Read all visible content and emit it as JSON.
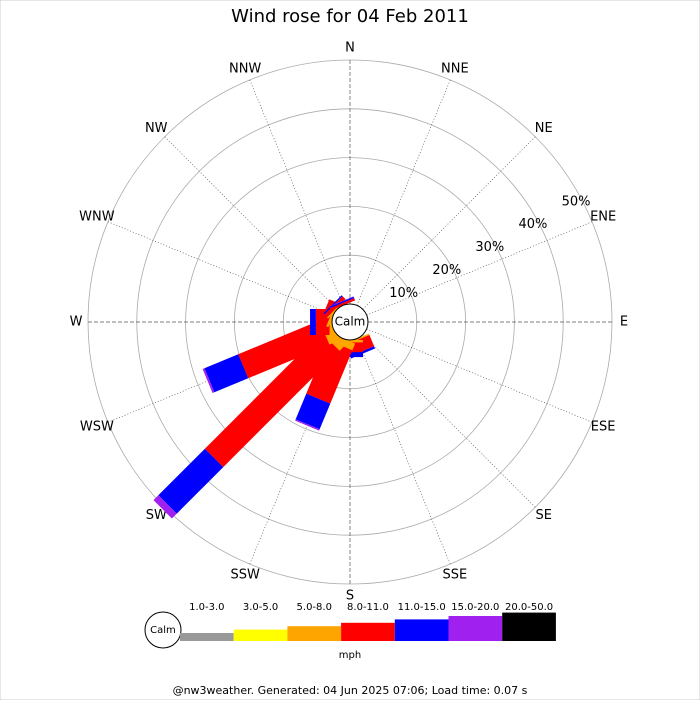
{
  "chart_data": {
    "type": "windrose",
    "title": "Wind rose for 04 Feb 2011",
    "categories": [
      "N",
      "NNE",
      "NE",
      "ENE",
      "E",
      "ESE",
      "SE",
      "SSE",
      "S",
      "SSW",
      "SW",
      "WSW",
      "W",
      "WNW",
      "NW",
      "NNW"
    ],
    "calm_label": "Calm",
    "ylim": [
      0,
      50
    ],
    "yticks": [
      {
        "value": 10,
        "label": "10%"
      },
      {
        "value": 20,
        "label": "20%"
      },
      {
        "value": 30,
        "label": "30%"
      },
      {
        "value": 40,
        "label": "40%"
      },
      {
        "value": 50,
        "label": "50%"
      }
    ],
    "series": [
      {
        "name": "1.0-3.0",
        "color": "#999999",
        "values": [
          0,
          0,
          0,
          0,
          0,
          0,
          0,
          0,
          0,
          0,
          0,
          0,
          0,
          0,
          0,
          0
        ]
      },
      {
        "name": "3.0-5.0",
        "color": "#ffff00",
        "values": [
          0,
          0,
          0,
          0,
          0,
          0,
          0,
          0,
          0,
          0,
          0,
          0,
          0,
          0,
          0,
          0
        ]
      },
      {
        "name": "5.0-8.0",
        "color": "#ffa500",
        "values": [
          0,
          0,
          0,
          0,
          0,
          0,
          0,
          0.3,
          0.5,
          1.5,
          2,
          2,
          0.5,
          0.5,
          0.3,
          0
        ]
      },
      {
        "name": "8.0-11.0",
        "color": "#ff0000",
        "values": [
          0,
          0,
          0,
          0,
          0,
          0,
          0,
          2.5,
          2,
          11.8,
          33.7,
          18,
          2.8,
          1.5,
          0.8,
          0.5
        ]
      },
      {
        "name": "11.0-15.0",
        "color": "#0000ff",
        "values": [
          0,
          0,
          0,
          0,
          0,
          0,
          0,
          0.5,
          1,
          5.7,
          13.5,
          7.5,
          1.2,
          0,
          0.3,
          0.3
        ]
      },
      {
        "name": "15.0-20.0",
        "color": "#a020f0",
        "values": [
          0,
          0,
          0,
          0,
          0,
          0,
          0,
          0,
          0,
          0.3,
          1.4,
          0.4,
          0,
          0,
          0,
          0.1
        ]
      },
      {
        "name": "20.0-50.0",
        "color": "#000000",
        "values": [
          0,
          0,
          0,
          0,
          0,
          0,
          0,
          0,
          0,
          0,
          0,
          0,
          0,
          0,
          0,
          0
        ]
      }
    ],
    "unit": "mph",
    "footer": "@nw3weather. Generated: 04 Jun 2025 07:06; Load time: 0.07 s"
  }
}
